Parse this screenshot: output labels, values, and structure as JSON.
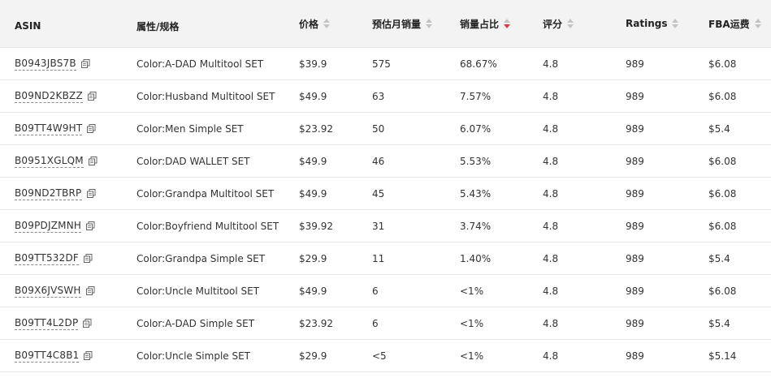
{
  "table": {
    "headers": {
      "asin": "ASIN",
      "attr": "属性/规格",
      "price": "价格",
      "sales": "预估月销量",
      "share": "销量占比",
      "score": "评分",
      "ratings": "Ratings",
      "fba": "FBA运费"
    },
    "sort_active_column": "销量占比",
    "sort_active_direction": "descending",
    "colors": {
      "header_bg": "#f3f3f3",
      "sort_active": "#e0393e",
      "sort_inactive": "#c4c4c4",
      "row_border": "#e6e6e6"
    },
    "rows": [
      {
        "asin": "B0943JBS7B",
        "attr": "Color:A-DAD Multitool SET",
        "price": "$39.9",
        "sales": "575",
        "share": "68.67%",
        "score": "4.8",
        "ratings": "989",
        "fba": "$6.08"
      },
      {
        "asin": "B09ND2KBZZ",
        "attr": "Color:Husband Multitool SET",
        "price": "$49.9",
        "sales": "63",
        "share": "7.57%",
        "score": "4.8",
        "ratings": "989",
        "fba": "$6.08"
      },
      {
        "asin": "B09TT4W9HT",
        "attr": "Color:Men Simple SET",
        "price": "$23.92",
        "sales": "50",
        "share": "6.07%",
        "score": "4.8",
        "ratings": "989",
        "fba": "$5.4"
      },
      {
        "asin": "B0951XGLQM",
        "attr": "Color:DAD WALLET SET",
        "price": "$49.9",
        "sales": "46",
        "share": "5.53%",
        "score": "4.8",
        "ratings": "989",
        "fba": "$6.08"
      },
      {
        "asin": "B09ND2TBRP",
        "attr": "Color:Grandpa Multitool SET",
        "price": "$49.9",
        "sales": "45",
        "share": "5.43%",
        "score": "4.8",
        "ratings": "989",
        "fba": "$6.08"
      },
      {
        "asin": "B09PDJZMNH",
        "attr": "Color:Boyfriend Multitool SET",
        "price": "$39.92",
        "sales": "31",
        "share": "3.74%",
        "score": "4.8",
        "ratings": "989",
        "fba": "$6.08"
      },
      {
        "asin": "B09TT532DF",
        "attr": "Color:Grandpa Simple SET",
        "price": "$29.9",
        "sales": "11",
        "share": "1.40%",
        "score": "4.8",
        "ratings": "989",
        "fba": "$5.4"
      },
      {
        "asin": "B09X6JVSWH",
        "attr": "Color:Uncle Multitool SET",
        "price": "$49.9",
        "sales": "6",
        "share": "<1%",
        "score": "4.8",
        "ratings": "989",
        "fba": "$6.08"
      },
      {
        "asin": "B09TT4L2DP",
        "attr": "Color:A-DAD Simple SET",
        "price": "$23.92",
        "sales": "6",
        "share": "<1%",
        "score": "4.8",
        "ratings": "989",
        "fba": "$5.4"
      },
      {
        "asin": "B09TT4C8B1",
        "attr": "Color:Uncle Simple SET",
        "price": "$29.9",
        "sales": "<5",
        "share": "<1%",
        "score": "4.8",
        "ratings": "989",
        "fba": "$5.14"
      }
    ]
  }
}
